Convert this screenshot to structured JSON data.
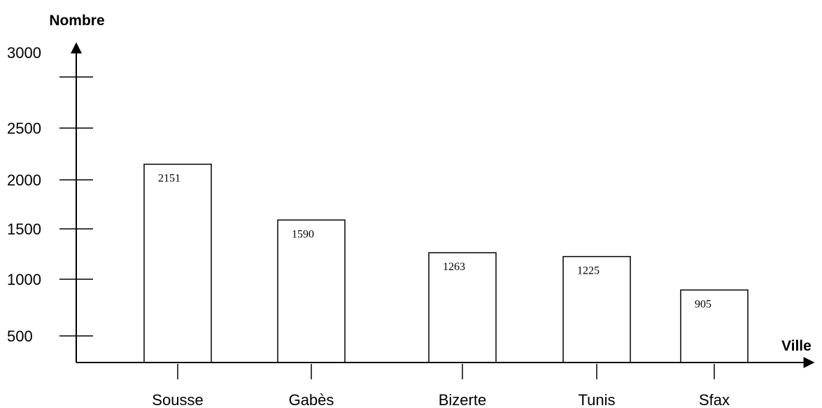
{
  "chart_data": {
    "type": "bar",
    "ylabel": "Nombre",
    "xlabel": "Ville",
    "categories": [
      "Sousse",
      "Gabès",
      "Bizerte",
      "Tunis",
      "Sfax"
    ],
    "values": [
      2151,
      1590,
      1263,
      1225,
      905
    ],
    "data_labels": [
      "2151",
      "1590",
      "1263",
      "1225",
      "905"
    ],
    "y_tick_values": [
      500,
      1000,
      1500,
      2000,
      2500,
      3000
    ],
    "y_tick_labels": [
      "500",
      "1000",
      "1500",
      "2000",
      "2500",
      "3000"
    ],
    "grid": false,
    "legend": "none"
  }
}
